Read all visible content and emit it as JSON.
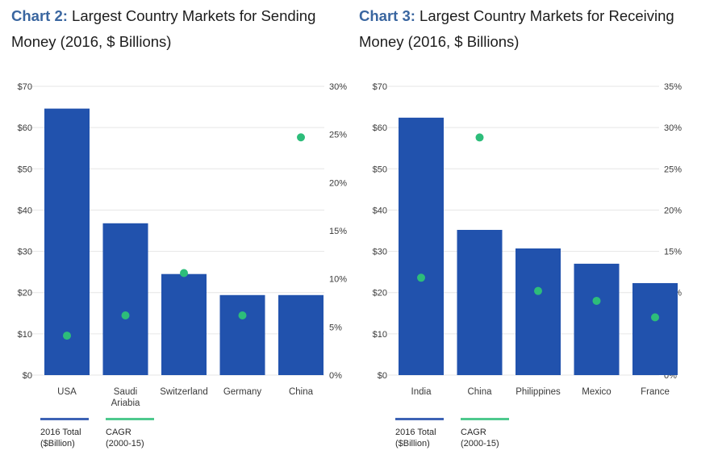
{
  "colors": {
    "bar": "#2152ad",
    "dot": "#2dbd7a",
    "grid": "#e6e6e6",
    "title_lead": "#3a66a0"
  },
  "chart_data": [
    {
      "type": "bar",
      "title_lead": "Chart 2:",
      "title": "Largest Country Markets for Sending Money (2016, $ Billions)",
      "categories": [
        "USA",
        "Saudi Ariabia",
        "Switzerland",
        "Germany",
        "China"
      ],
      "series": [
        {
          "name": "2016 Total ($Billion)",
          "type": "bar",
          "axis": "left",
          "values": [
            64.6,
            36.8,
            24.5,
            19.4,
            19.4
          ]
        },
        {
          "name": "CAGR (2000-15)",
          "type": "scatter",
          "axis": "right",
          "values": [
            4.1,
            6.2,
            10.6,
            6.2,
            24.7
          ]
        }
      ],
      "ylim": [
        0,
        70
      ],
      "yticks": [
        "$0",
        "$10",
        "$20",
        "$30",
        "$40",
        "$50",
        "$60",
        "$70"
      ],
      "ylim_right": [
        0,
        30
      ],
      "yticks_right": [
        "0%",
        "5%",
        "10%",
        "15%",
        "20%",
        "25%",
        "30%"
      ],
      "grid": true,
      "legend_position": "bottom-left",
      "legend": [
        {
          "line1": "2016 Total",
          "line2": "($Billion)"
        },
        {
          "line1": "CAGR",
          "line2": "(2000-15)"
        }
      ]
    },
    {
      "type": "bar",
      "title_lead": "Chart 3:",
      "title": "Largest Country Markets for Receiving Money (2016, $ Billions)",
      "categories": [
        "India",
        "China",
        "Philippines",
        "Mexico",
        "France"
      ],
      "series": [
        {
          "name": "2016 Total ($Billion)",
          "type": "bar",
          "axis": "left",
          "values": [
            62.4,
            35.2,
            30.7,
            27.0,
            22.3
          ]
        },
        {
          "name": "CAGR (2000-15)",
          "type": "scatter",
          "axis": "right",
          "values": [
            11.8,
            28.8,
            10.2,
            9.0,
            7.0
          ]
        }
      ],
      "ylim": [
        0,
        70
      ],
      "yticks": [
        "$70",
        "$60",
        "$50",
        "$40",
        "$30",
        "$20",
        "10",
        "$0"
      ],
      "ylim_right": [
        0,
        35
      ],
      "yticks_right": [
        "0%",
        "5%",
        "10%",
        "15%",
        "20%",
        "25%",
        "30%",
        "35%"
      ],
      "grid": true,
      "legend_position": "bottom-left",
      "legend": [
        {
          "line1": "2016 Total",
          "line2": "($Billion)"
        },
        {
          "line1": "CAGR",
          "line2": "(2000-15)"
        }
      ]
    }
  ]
}
